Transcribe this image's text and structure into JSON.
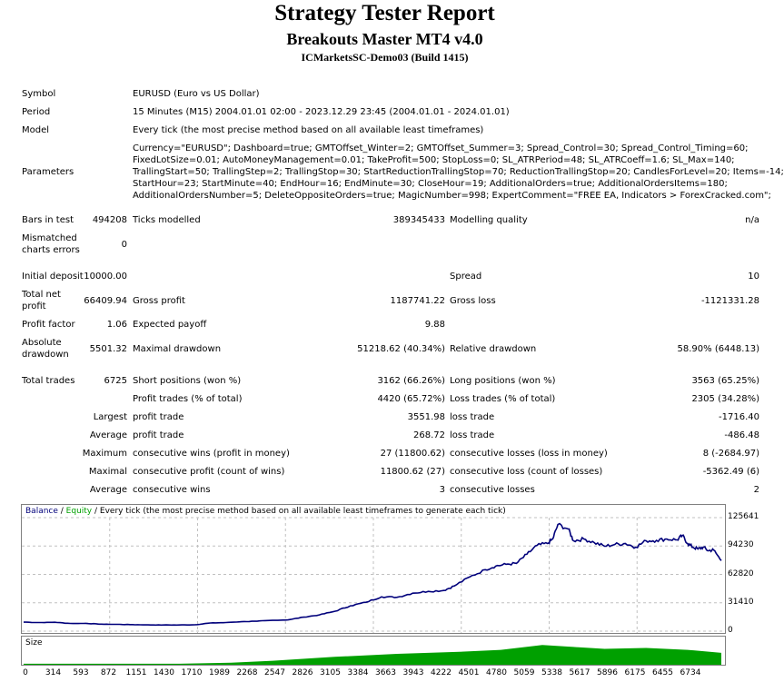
{
  "header": {
    "title": "Strategy Tester Report",
    "expert": "Breakouts Master MT4 v4.0",
    "server": "ICMarketsSC-Demo03 (Build 1415)"
  },
  "info": {
    "symbol_label": "Symbol",
    "symbol": "EURUSD (Euro vs US Dollar)",
    "period_label": "Period",
    "period": "15 Minutes (M15) 2004.01.01 02:00 - 2023.12.29 23:45 (2004.01.01 - 2024.01.01)",
    "model_label": "Model",
    "model": "Every tick (the most precise method based on all available least timeframes)",
    "parameters_label": "Parameters",
    "parameters": [
      "Currency=\"EURUSD\"; Dashboard=true; GMTOffset_Winter=2; GMTOffset_Summer=3; Spread_Control=30; Spread_Control_Timing=60;",
      "FixedLotSize=0.01; AutoMoneyManagement=0.01; TakeProfit=500; StopLoss=0; SL_ATRPeriod=48; SL_ATRCoeff=1.6; SL_Max=140;",
      "TrallingStart=50; TrallingStep=2; TrallingStop=30; StartReductionTrallingStop=70; ReductionTrallingStop=20; CandlesForLevel=20; Items=-14;",
      "StartHour=23; StartMinute=40; EndHour=16; EndMinute=30; CloseHour=19; AdditionalOrders=true; AdditionalOrdersItems=180;",
      "AdditionalOrdersNumber=5; DeleteOppositeOrders=true; MagicNumber=998; ExpertComment=\"FREE EA, Indicators > ForexCracked.com\";"
    ]
  },
  "stats": {
    "bars_label": "Bars in test",
    "bars": "494208",
    "ticks_label": "Ticks modelled",
    "ticks": "389345433",
    "quality_label": "Modelling quality",
    "quality": "n/a",
    "mismatch_label_1": "Mismatched",
    "mismatch_label_2": "charts errors",
    "mismatch": "0",
    "deposit_label": "Initial deposit",
    "deposit": "10000.00",
    "spread_label": "Spread",
    "spread": "10",
    "net_label_1": "Total net",
    "net_label_2": "profit",
    "net": "66409.94",
    "gross_profit_label": "Gross profit",
    "gross_profit": "1187741.22",
    "gross_loss_label": "Gross loss",
    "gross_loss": "-1121331.28",
    "pf_label": "Profit factor",
    "pf": "1.06",
    "payoff_label": "Expected payoff",
    "payoff": "9.88",
    "abs_dd_label_1": "Absolute",
    "abs_dd_label_2": "drawdown",
    "abs_dd": "5501.32",
    "max_dd_label": "Maximal drawdown",
    "max_dd": "51218.62 (40.34%)",
    "rel_dd_label": "Relative drawdown",
    "rel_dd": "58.90% (6448.13)",
    "trades_label": "Total trades",
    "trades": "6725",
    "short_label": "Short positions (won %)",
    "short": "3162 (66.26%)",
    "long_label": "Long positions (won %)",
    "long": "3563 (65.25%)",
    "profit_trades_label": "Profit trades (% of total)",
    "profit_trades": "4420 (65.72%)",
    "loss_trades_label": "Loss trades (% of total)",
    "loss_trades": "2305 (34.28%)",
    "largest_label": "Largest",
    "largest_profit_label": "profit trade",
    "largest_profit": "3551.98",
    "largest_loss_label": "loss trade",
    "largest_loss": "-1716.40",
    "average_label": "Average",
    "average_profit_label": "profit trade",
    "average_profit": "268.72",
    "average_loss_label": "loss trade",
    "average_loss": "-486.48",
    "maximum_label": "Maximum",
    "max_wins_label": "consecutive wins (profit in money)",
    "max_wins": "27 (11800.62)",
    "max_losses_label": "consecutive losses (loss in money)",
    "max_losses": "8 (-2684.97)",
    "maximal_label": "Maximal",
    "maximal_profit_label": "consecutive profit (count of wins)",
    "maximal_profit": "11800.62 (27)",
    "maximal_loss_label": "consecutive loss (count of losses)",
    "maximal_loss": "-5362.49 (6)",
    "avg_label": "Average",
    "avg_wins_label": "consecutive wins",
    "avg_wins": "3",
    "avg_losses_label": "consecutive losses",
    "avg_losses": "2"
  },
  "chart_data": {
    "type": "line",
    "legend_balance": "Balance",
    "legend_sep": " / ",
    "legend_equity": "Equity",
    "legend_rest": " / Every tick (the most precise method based on all available least timeframes to generate each tick)",
    "size_label": "Size",
    "colors": {
      "balance": "#00007b",
      "equity": "#00a000",
      "size": "#00a000",
      "grid": "#c0c0c0"
    },
    "ylim": [
      0,
      125641
    ],
    "y_ticks": [
      "125641",
      "94230",
      "62820",
      "31410",
      "0"
    ],
    "x_ticks": [
      "0",
      "314",
      "593",
      "872",
      "1151",
      "1430",
      "1710",
      "1989",
      "2268",
      "2547",
      "2826",
      "3105",
      "3384",
      "3663",
      "3943",
      "4222",
      "4501",
      "4780",
      "5059",
      "5338",
      "5617",
      "5896",
      "6175",
      "6455",
      "6734"
    ],
    "xlim": [
      0,
      6725
    ],
    "series": [
      {
        "name": "Balance",
        "x": [
          0,
          150,
          300,
          450,
          600,
          750,
          900,
          1050,
          1200,
          1350,
          1500,
          1650,
          1800,
          1950,
          2100,
          2250,
          2400,
          2550,
          2700,
          2850,
          3000,
          3150,
          3300,
          3450,
          3600,
          3750,
          3900,
          4050,
          4150,
          4300,
          4450,
          4550,
          4650,
          4750,
          4850,
          4950,
          5050,
          5100,
          5150,
          5250,
          5300,
          5400,
          5500,
          5600,
          5700,
          5800,
          5900,
          6000,
          6100,
          6200,
          6300,
          6350,
          6400,
          6450,
          6500,
          6550,
          6600,
          6650,
          6725
        ],
        "values": [
          10000,
          9500,
          9800,
          8500,
          8600,
          7700,
          7500,
          7200,
          6900,
          6800,
          6800,
          7000,
          9000,
          9500,
          10500,
          11000,
          12000,
          12500,
          15500,
          18000,
          22000,
          28000,
          32000,
          38000,
          37500,
          42000,
          44000,
          45000,
          50000,
          60000,
          68000,
          72000,
          74000,
          75000,
          85000,
          95000,
          97000,
          102000,
          118000,
          113000,
          100000,
          102000,
          98000,
          94000,
          96000,
          97000,
          93000,
          100000,
          100500,
          102000,
          101000,
          106000,
          97000,
          93000,
          91000,
          93000,
          89000,
          90000,
          78000
        ]
      }
    ],
    "size_area": {
      "x": [
        0,
        1000,
        1500,
        2000,
        2400,
        3000,
        3600,
        4200,
        4600,
        5000,
        5300,
        5600,
        6000,
        6400,
        6725
      ],
      "values": [
        1,
        1,
        1,
        2,
        4,
        8,
        11,
        13,
        15,
        20,
        18,
        16,
        17,
        15,
        12
      ]
    }
  }
}
